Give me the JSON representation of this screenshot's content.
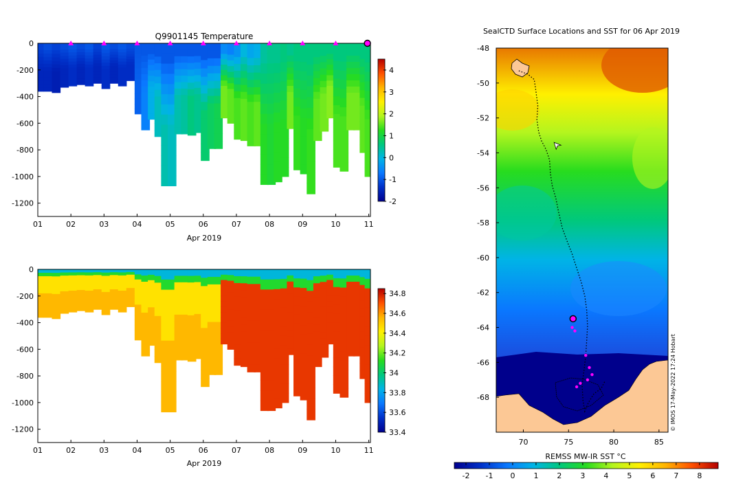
{
  "chart_data": [
    {
      "type": "heatmap",
      "panel": "temperature-section",
      "title": "Q9901145  Temperature",
      "xlabel": "Apr 2019",
      "xticks": [
        "01",
        "02",
        "03",
        "04",
        "05",
        "06",
        "07",
        "08",
        "09",
        "10",
        "11"
      ],
      "xlim": [
        1,
        11.05
      ],
      "ylim": [
        -1300,
        0
      ],
      "yticks": [
        0,
        -200,
        -400,
        -600,
        -800,
        -1000,
        -1200
      ],
      "ytick_labels": [
        "0",
        "-200",
        "-400",
        "-600",
        "-800",
        "-1000",
        "-1200"
      ],
      "colorbar": {
        "range": [
          -2,
          4.5
        ],
        "ticks": [
          4,
          3,
          2,
          1,
          0,
          -1,
          -2
        ],
        "tick_labels": [
          "4",
          "3",
          "2",
          "1",
          "0",
          "-1",
          "-2"
        ]
      },
      "colormap": [
        "#00008f",
        "#0030c8",
        "#0a78ff",
        "#00b4e6",
        "#00c87d",
        "#28dc1e",
        "#b4f51e",
        "#fff000",
        "#ffb400",
        "#ff5000",
        "#b40000"
      ],
      "profile_markers_day": [
        2,
        3,
        4,
        5,
        6,
        7,
        8,
        9,
        10
      ],
      "current_profile_day": 11,
      "marker_color": "#ff00ff",
      "profiles": [
        {
          "day": 1.05,
          "depth": 360,
          "surface": -1.2,
          "deep": -1.5
        },
        {
          "day": 1.3,
          "depth": 360,
          "surface": -1.1,
          "deep": -1.5
        },
        {
          "day": 1.55,
          "depth": 370,
          "surface": -1.2,
          "deep": -1.6
        },
        {
          "day": 1.8,
          "depth": 330,
          "surface": -1.1,
          "deep": -1.5
        },
        {
          "day": 2.05,
          "depth": 320,
          "surface": -1.0,
          "deep": -1.4
        },
        {
          "day": 2.3,
          "depth": 310,
          "surface": -1.1,
          "deep": -1.5
        },
        {
          "day": 2.55,
          "depth": 320,
          "surface": -1.0,
          "deep": -1.4
        },
        {
          "day": 2.8,
          "depth": 300,
          "surface": -1.2,
          "deep": -1.5
        },
        {
          "day": 3.05,
          "depth": 340,
          "surface": -1.0,
          "deep": -1.4
        },
        {
          "day": 3.3,
          "depth": 300,
          "surface": -1.1,
          "deep": -1.5
        },
        {
          "day": 3.55,
          "depth": 320,
          "surface": -1.0,
          "deep": -1.4
        },
        {
          "day": 3.8,
          "depth": 280,
          "surface": -1.1,
          "deep": -1.4
        },
        {
          "day": 4.05,
          "depth": 530,
          "surface": -1.0,
          "deep": -0.9
        },
        {
          "day": 4.25,
          "depth": 650,
          "surface": -1.0,
          "deep": -0.6
        },
        {
          "day": 4.45,
          "depth": 570,
          "surface": -1.0,
          "deep": -0.1
        },
        {
          "day": 4.65,
          "depth": 700,
          "surface": -1.0,
          "deep": 0.2
        },
        {
          "day": 4.85,
          "depth": 1070,
          "surface": -1.0,
          "deep": 0.3
        },
        {
          "day": 5.05,
          "depth": 1070,
          "surface": -1.0,
          "deep": 0.2
        },
        {
          "day": 5.25,
          "depth": 680,
          "surface": -1.0,
          "deep": 0.3
        },
        {
          "day": 5.45,
          "depth": 680,
          "surface": -1.0,
          "deep": 0.4
        },
        {
          "day": 5.65,
          "depth": 690,
          "surface": -1.0,
          "deep": 0.6
        },
        {
          "day": 5.85,
          "depth": 670,
          "surface": -1.0,
          "deep": 0.5
        },
        {
          "day": 6.05,
          "depth": 880,
          "surface": -1.0,
          "deep": 0.7
        },
        {
          "day": 6.25,
          "depth": 790,
          "surface": -1.0,
          "deep": 0.8
        },
        {
          "day": 6.45,
          "depth": 790,
          "surface": -1.0,
          "deep": 0.9
        },
        {
          "day": 6.65,
          "depth": 560,
          "surface": -0.5,
          "deep": 1.6
        },
        {
          "day": 6.85,
          "depth": 600,
          "surface": -0.6,
          "deep": 1.5
        },
        {
          "day": 7.05,
          "depth": 720,
          "surface": -0.4,
          "deep": 1.4
        },
        {
          "day": 7.25,
          "depth": 730,
          "surface": 0.0,
          "deep": 1.5
        },
        {
          "day": 7.45,
          "depth": 770,
          "surface": -0.2,
          "deep": 1.4
        },
        {
          "day": 7.65,
          "depth": 770,
          "surface": -0.1,
          "deep": 1.5
        },
        {
          "day": 7.85,
          "depth": 1060,
          "surface": 0.4,
          "deep": 1.2
        },
        {
          "day": 8.05,
          "depth": 1060,
          "surface": 0.5,
          "deep": 1.1
        },
        {
          "day": 8.25,
          "depth": 1040,
          "surface": 0.5,
          "deep": 1.2
        },
        {
          "day": 8.45,
          "depth": 1000,
          "surface": 0.6,
          "deep": 1.2
        },
        {
          "day": 8.65,
          "depth": 640,
          "surface": 0.5,
          "deep": 1.6
        },
        {
          "day": 8.85,
          "depth": 950,
          "surface": 0.6,
          "deep": 1.3
        },
        {
          "day": 9.05,
          "depth": 980,
          "surface": 0.6,
          "deep": 1.2
        },
        {
          "day": 9.25,
          "depth": 1130,
          "surface": 0.6,
          "deep": 1.3
        },
        {
          "day": 9.45,
          "depth": 730,
          "surface": 0.6,
          "deep": 1.5
        },
        {
          "day": 9.65,
          "depth": 660,
          "surface": 0.6,
          "deep": 1.6
        },
        {
          "day": 9.85,
          "depth": 560,
          "surface": 0.6,
          "deep": 1.7
        },
        {
          "day": 10.05,
          "depth": 930,
          "surface": 0.6,
          "deep": 1.4
        },
        {
          "day": 10.25,
          "depth": 960,
          "surface": 0.6,
          "deep": 1.4
        },
        {
          "day": 10.45,
          "depth": 650,
          "surface": 0.6,
          "deep": 1.6
        },
        {
          "day": 10.65,
          "depth": 650,
          "surface": 0.6,
          "deep": 1.6
        },
        {
          "day": 10.85,
          "depth": 820,
          "surface": 0.6,
          "deep": 1.5
        },
        {
          "day": 11.0,
          "depth": 1000,
          "surface": 0.6,
          "deep": 1.4
        }
      ]
    },
    {
      "type": "heatmap",
      "panel": "salinity-section",
      "title": "",
      "xlabel": "Apr 2019",
      "xticks": [
        "01",
        "02",
        "03",
        "04",
        "05",
        "06",
        "07",
        "08",
        "09",
        "10",
        "11"
      ],
      "xlim": [
        1,
        11.05
      ],
      "ylim": [
        -1300,
        0
      ],
      "yticks": [
        0,
        -200,
        -400,
        -600,
        -800,
        -1000,
        -1200
      ],
      "ytick_labels": [
        "0",
        "-200",
        "-400",
        "-600",
        "-800",
        "-1000",
        "-1200"
      ],
      "colorbar": {
        "range": [
          33.4,
          34.85
        ],
        "ticks": [
          34.8,
          34.6,
          34.4,
          34.2,
          34,
          33.8,
          33.6,
          33.4
        ],
        "tick_labels": [
          "34.8",
          "34.6",
          "34.4",
          "34.2",
          "34",
          "33.8",
          "33.6",
          "33.4"
        ]
      },
      "colormap": [
        "#00008f",
        "#0030c8",
        "#0a78ff",
        "#00b4e6",
        "#00c87d",
        "#28dc1e",
        "#b4f51e",
        "#fff000",
        "#ffb400",
        "#ff5000",
        "#b40000"
      ],
      "salinity_by_segment": {
        "surface": 33.85,
        "subsurface_early": 34.45,
        "deep_early": 34.55,
        "deep_late": 34.75
      }
    },
    {
      "type": "heatmap",
      "panel": "sst-map",
      "title": "SealCTD Surface Locations and SST for 06 Apr 2019",
      "xlabel": "",
      "xlim": [
        67,
        86
      ],
      "ylim": [
        -70,
        -48
      ],
      "xticks": [
        70,
        75,
        80,
        85
      ],
      "xtick_labels": [
        "70",
        "75",
        "80",
        "85"
      ],
      "yticks": [
        -48,
        -50,
        -52,
        -54,
        -56,
        -58,
        -60,
        -62,
        -64,
        -66,
        -68
      ],
      "ytick_labels": [
        "-48",
        "-50",
        "-52",
        "-54",
        "-56",
        "-58",
        "-60",
        "-62",
        "-64",
        "-66",
        "-68"
      ],
      "colorbar": {
        "label": "REMSS MW-IR SST °C",
        "range": [
          -2.5,
          8.8
        ],
        "ticks": [
          -2,
          -1,
          0,
          1,
          2,
          3,
          4,
          5,
          6,
          7,
          8
        ],
        "tick_labels": [
          "-2",
          "-1",
          "0",
          "1",
          "2",
          "3",
          "4",
          "5",
          "6",
          "7",
          "8"
        ]
      },
      "land_color": "#fcc895",
      "ice_color": "#00008c",
      "timestamp": "© IMOS 17-May-2022 17:24 Hobart",
      "track_lonlat": [
        [
          69.5,
          -49.3
        ],
        [
          70.5,
          -49.5
        ],
        [
          71.2,
          -49.8
        ],
        [
          71.4,
          -50.5
        ],
        [
          71.6,
          -51.3
        ],
        [
          71.5,
          -52.1
        ],
        [
          71.7,
          -52.8
        ],
        [
          72.0,
          -53.3
        ],
        [
          72.5,
          -53.8
        ],
        [
          72.9,
          -54.4
        ],
        [
          73.0,
          -55.2
        ],
        [
          73.2,
          -55.9
        ],
        [
          73.6,
          -56.6
        ],
        [
          73.9,
          -57.4
        ],
        [
          74.3,
          -58.3
        ],
        [
          74.8,
          -59.0
        ],
        [
          75.4,
          -59.8
        ],
        [
          75.9,
          -60.6
        ],
        [
          76.4,
          -61.4
        ],
        [
          76.8,
          -62.2
        ],
        [
          77.0,
          -63.0
        ],
        [
          77.1,
          -63.9
        ],
        [
          77.0,
          -64.8
        ],
        [
          76.9,
          -65.6
        ],
        [
          76.7,
          -66.5
        ],
        [
          76.5,
          -67.3
        ],
        [
          76.6,
          -68.2
        ],
        [
          76.8,
          -68.8
        ],
        [
          77.2,
          -68.3
        ],
        [
          77.8,
          -67.8
        ],
        [
          78.6,
          -67.5
        ],
        [
          79.0,
          -67.1
        ]
      ],
      "profile_points_lonlat": [
        [
          75.5,
          -63.5
        ],
        [
          75.4,
          -64.0
        ],
        [
          75.7,
          -64.2
        ],
        [
          76.9,
          -65.6
        ],
        [
          77.3,
          -66.3
        ],
        [
          77.6,
          -66.7
        ],
        [
          77.1,
          -67.0
        ],
        [
          76.3,
          -67.2
        ],
        [
          75.9,
          -67.4
        ]
      ],
      "current_profile_lonlat": [
        75.5,
        -63.5
      ],
      "cursor_lonlat": [
        73.4,
        -53.4
      ]
    }
  ]
}
